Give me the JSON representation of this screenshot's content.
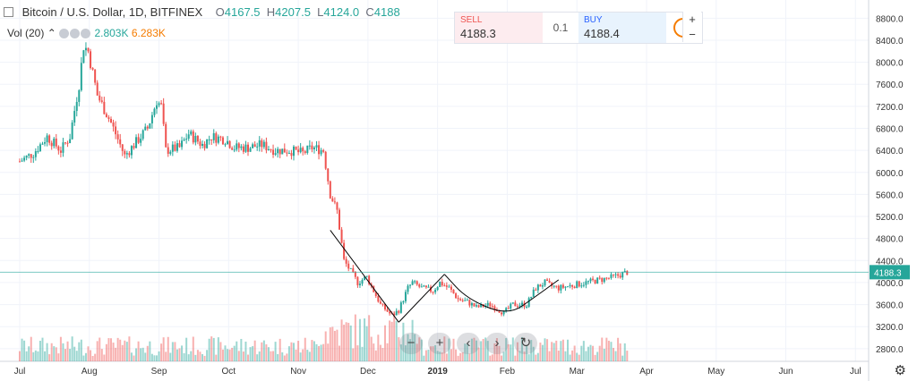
{
  "header": {
    "symbol": "Bitcoin / U.S. Dollar, 1D, BITFINEX",
    "o_label": "O",
    "o_value": "4167.5",
    "h_label": "H",
    "h_value": "4207.5",
    "l_label": "L",
    "l_value": "4124.0",
    "c_label": "C",
    "c_value": "4188"
  },
  "volume": {
    "label": "Vol (20)",
    "value1": "2.803K",
    "value2": "6.283K"
  },
  "trade_panel": {
    "sell_label": "SELL",
    "sell_price": "4188.3",
    "spread": "0.1",
    "buy_label": "BUY",
    "buy_price": "4188.4",
    "info_icon": "!",
    "plus": "+",
    "minus": "−"
  },
  "nav_buttons": {
    "zoom_out": "−",
    "zoom_in": "+",
    "back": "‹",
    "forward": "›",
    "reset": "↻"
  },
  "settings_icon": "⚙",
  "colors": {
    "up": "#26a69a",
    "down": "#ef5350",
    "price_line": "#26a69a",
    "text": "#333333"
  },
  "chart_data": {
    "type": "candlestick",
    "title": "Bitcoin / U.S. Dollar, 1D, BITFINEX",
    "y_axis": {
      "side": "right",
      "ticks": [
        2800,
        3200,
        3600,
        4000,
        4400,
        4800,
        5200,
        5600,
        6000,
        6400,
        6800,
        7200,
        7600,
        8000,
        8400,
        8800
      ],
      "range": [
        2700,
        9000
      ]
    },
    "x_axis": {
      "ticks": [
        {
          "label": "Jul",
          "month": 0
        },
        {
          "label": "Aug",
          "month": 1
        },
        {
          "label": "Sep",
          "month": 2
        },
        {
          "label": "Oct",
          "month": 3
        },
        {
          "label": "Nov",
          "month": 4
        },
        {
          "label": "Dec",
          "month": 5
        },
        {
          "label": "2019",
          "month": 6
        },
        {
          "label": "Feb",
          "month": 7
        },
        {
          "label": "Mar",
          "month": 8
        },
        {
          "label": "Apr",
          "month": 9
        },
        {
          "label": "May",
          "month": 10
        },
        {
          "label": "Jun",
          "month": 11
        },
        {
          "label": "Jul",
          "month": 12
        }
      ]
    },
    "last_price": 4188.3,
    "price_path": [
      [
        0,
        6200
      ],
      [
        6,
        6350
      ],
      [
        12,
        6650
      ],
      [
        18,
        6400
      ],
      [
        22,
        6650
      ],
      [
        26,
        7600
      ],
      [
        28,
        8300
      ],
      [
        30,
        8200
      ],
      [
        34,
        7400
      ],
      [
        40,
        6900
      ],
      [
        46,
        6300
      ],
      [
        50,
        6500
      ],
      [
        56,
        6800
      ],
      [
        60,
        7300
      ],
      [
        62,
        7200
      ],
      [
        64,
        6400
      ],
      [
        70,
        6450
      ],
      [
        74,
        6700
      ],
      [
        80,
        6500
      ],
      [
        84,
        6650
      ],
      [
        90,
        6600
      ],
      [
        94,
        6450
      ],
      [
        100,
        6450
      ],
      [
        106,
        6500
      ],
      [
        112,
        6400
      ],
      [
        118,
        6400
      ],
      [
        124,
        6350
      ],
      [
        128,
        6450
      ],
      [
        133,
        6400
      ],
      [
        136,
        5600
      ],
      [
        139,
        5300
      ],
      [
        142,
        4400
      ],
      [
        148,
        4000
      ],
      [
        152,
        4100
      ],
      [
        158,
        3600
      ],
      [
        163,
        3400
      ],
      [
        166,
        3500
      ],
      [
        170,
        3900
      ],
      [
        172,
        4000
      ],
      [
        176,
        3900
      ],
      [
        181,
        3850
      ],
      [
        184,
        4000
      ],
      [
        188,
        3900
      ],
      [
        192,
        3700
      ],
      [
        196,
        3650
      ],
      [
        200,
        3550
      ],
      [
        206,
        3600
      ],
      [
        212,
        3450
      ],
      [
        216,
        3600
      ],
      [
        222,
        3600
      ],
      [
        226,
        3900
      ],
      [
        230,
        4000
      ],
      [
        232,
        3950
      ],
      [
        236,
        3900
      ],
      [
        242,
        3950
      ],
      [
        248,
        4000
      ],
      [
        254,
        4050
      ],
      [
        260,
        4100
      ],
      [
        266,
        4188
      ]
    ],
    "volume_ymax": 12000,
    "patterns": {
      "downtrend_line": [
        [
          136,
          4950
        ],
        [
          166,
          3280
        ]
      ],
      "uptrend_line": [
        [
          166,
          3280
        ],
        [
          186,
          4150
        ]
      ],
      "cup_arc": [
        [
          186,
          4150
        ],
        [
          196,
          3700
        ],
        [
          214,
          3400
        ],
        [
          226,
          3750
        ],
        [
          236,
          4050
        ]
      ]
    }
  }
}
